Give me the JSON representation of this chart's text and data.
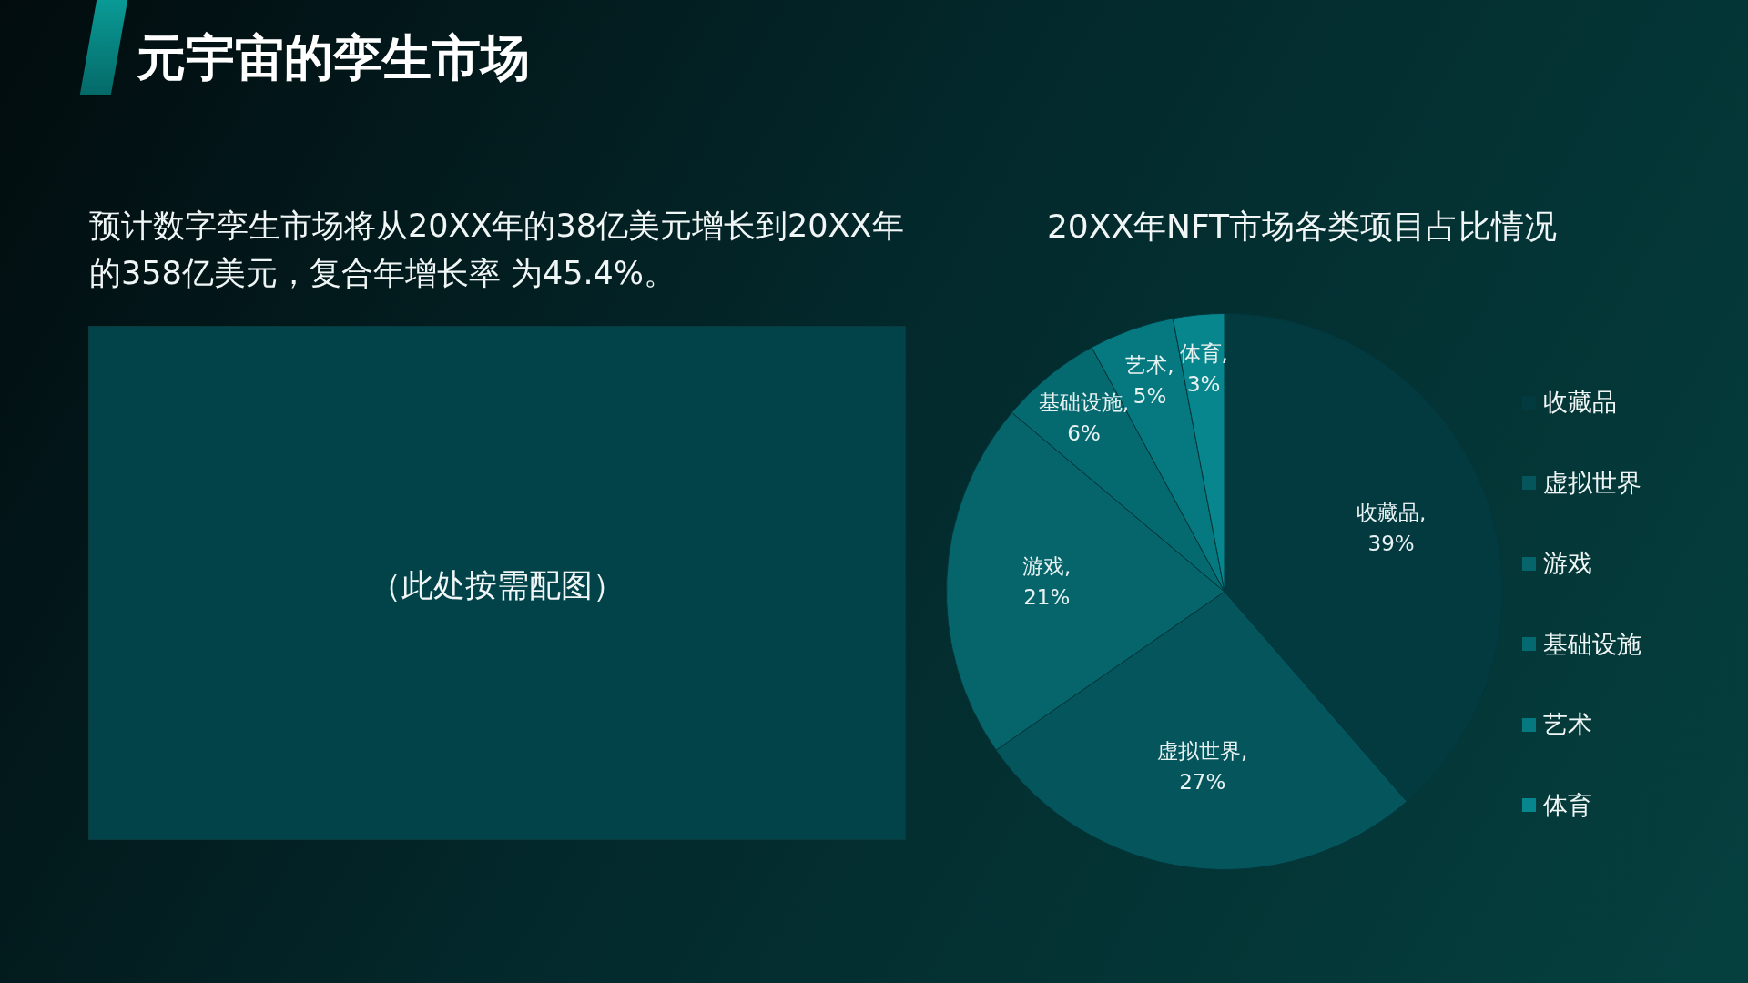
{
  "chart_data": {
    "type": "pie",
    "title": "20XX年NFT市场各类项目占比情况",
    "categories": [
      "收藏品",
      "虚拟世界",
      "游戏",
      "基础设施",
      "艺术",
      "体育"
    ],
    "values": [
      39,
      27,
      21,
      6,
      5,
      3
    ],
    "value_labels": [
      "收藏品, 39%",
      "虚拟世界, 27%",
      "游戏, 21%",
      "基础设施, 6%",
      "艺术, 5%",
      "体育, 3%"
    ],
    "colors": [
      "#023a40",
      "#05555d",
      "#05656b",
      "#046a70",
      "#05797f",
      "#07878d"
    ],
    "legend": "right",
    "annotations": [
      "元宇宙的孪生市场",
      "预计数字孪生市场将从20XX年的38亿美元增长到20XX年的358亿美元，复合年增长率 为45.4%。",
      "（此处按需配图）"
    ]
  }
}
